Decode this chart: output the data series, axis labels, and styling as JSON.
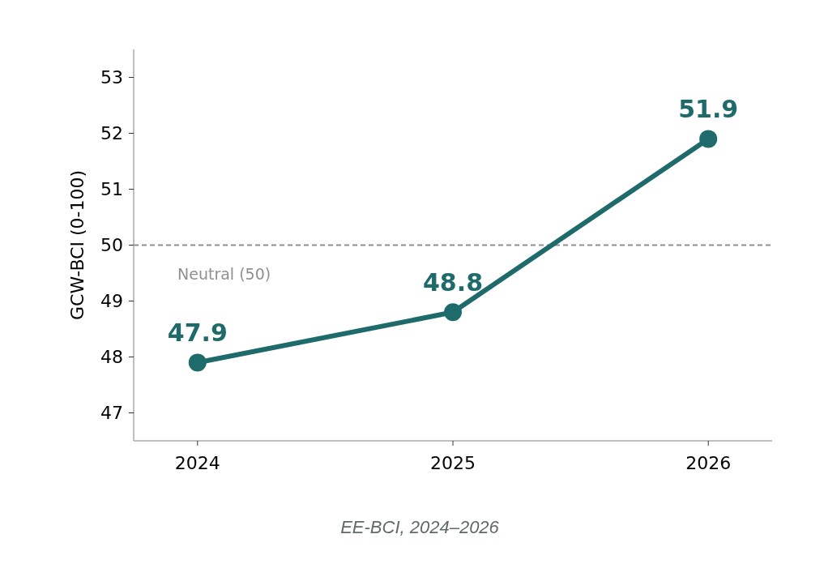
{
  "chart_data": {
    "type": "line",
    "ylabel": "GCW-BCI (0-100)",
    "x": [
      2024,
      2025,
      2026
    ],
    "series": [
      {
        "color": "#1f6b6b",
        "values": [
          47.9,
          48.8,
          51.9
        ]
      }
    ],
    "xlim": [
      2023.75,
      2026.25
    ],
    "xticks": [
      2024,
      2025,
      2026
    ],
    "ylim": [
      46.5,
      53.5
    ],
    "yticks": [
      47,
      48,
      49,
      50,
      51,
      52,
      53
    ],
    "ref_lines": [
      {
        "axis": "y",
        "value": 50,
        "label": "Neutral (50)",
        "color": "#909090",
        "line_style": "dashed"
      }
    ],
    "data_labels": true,
    "marker": "circle",
    "line_style": "solid",
    "grid": false,
    "annotations": [
      "EE-BCI, 2024–2026"
    ]
  }
}
